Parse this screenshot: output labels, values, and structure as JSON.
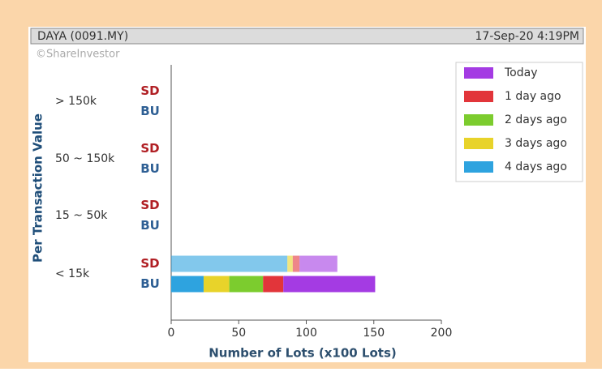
{
  "header": {
    "symbol": "DAYA (0091.MY)",
    "timestamp": "17-Sep-20 4:19PM",
    "watermark": "©ShareInvestor"
  },
  "chart_data": {
    "type": "bar",
    "orientation": "horizontal",
    "stacked": true,
    "x_label": "Number of Lots (x100 Lots)",
    "y_label": "Per Transaction Value",
    "categories": [
      "> 150k",
      "50 ~ 150k",
      "15 ~ 50k",
      "< 15k"
    ],
    "sub_categories": [
      "SD",
      "BU"
    ],
    "series": [
      {
        "name": "Today",
        "color": "#a43be3",
        "values": [
          [
            0,
            0
          ],
          [
            0,
            0
          ],
          [
            0,
            0
          ],
          [
            28,
            68
          ]
        ]
      },
      {
        "name": "1 day ago",
        "color": "#e2353a",
        "values": [
          [
            0,
            0
          ],
          [
            0,
            0
          ],
          [
            0,
            0
          ],
          [
            5,
            15
          ]
        ]
      },
      {
        "name": "2 days ago",
        "color": "#7ccc2e",
        "values": [
          [
            0,
            0
          ],
          [
            0,
            0
          ],
          [
            0,
            0
          ],
          [
            0,
            25
          ]
        ]
      },
      {
        "name": "3 days ago",
        "color": "#e8d32a",
        "values": [
          [
            0,
            0
          ],
          [
            0,
            0
          ],
          [
            0,
            0
          ],
          [
            4,
            19
          ]
        ]
      },
      {
        "name": "4 days ago",
        "color": "#2ea3df",
        "values": [
          [
            0,
            0
          ],
          [
            0,
            0
          ],
          [
            0,
            0
          ],
          [
            86,
            24
          ]
        ]
      }
    ],
    "xlim": [
      0,
      200
    ],
    "xticks": [
      0,
      50,
      100,
      150,
      200
    ],
    "grid": false,
    "legend": "upper right"
  }
}
